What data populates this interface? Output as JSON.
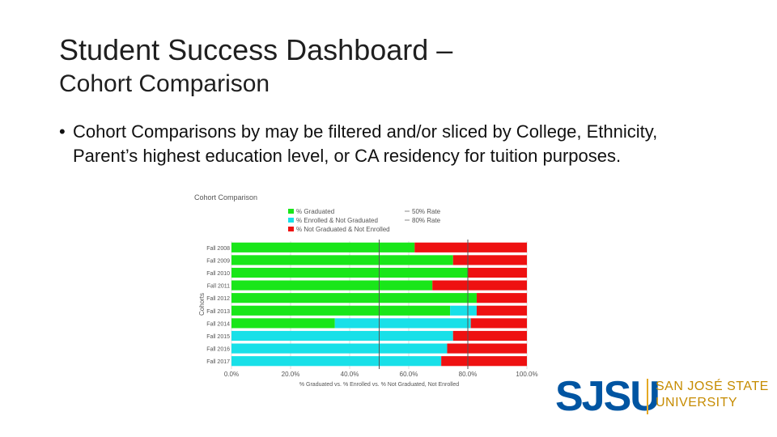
{
  "slide": {
    "title_line1": "Student Success Dashboard –",
    "title_line2": "Cohort Comparison",
    "bullet_marker": "•",
    "bullet_text": "Cohort Comparisons by may be filtered and/or sliced by College, Ethnicity, Parent’s highest education level, or CA residency for tuition purposes."
  },
  "logo": {
    "mark": "SJSU",
    "name_line1": "SAN JOSÉ STATE",
    "name_line2": "UNIVERSITY",
    "colors": {
      "blue": "#0055a2",
      "gold": "#e5a823"
    }
  },
  "chart_data": {
    "type": "bar",
    "orientation": "horizontal",
    "stacked": true,
    "title": "Cohort Comparison",
    "xlabel": "% Graduated vs. % Enrolled vs. % Not Graduated, Not Enrolled",
    "ylabel": "Cohorts",
    "xlim": [
      0,
      100
    ],
    "xticks": [
      "0.0%",
      "20.0%",
      "40.0%",
      "60.0%",
      "80.0%",
      "100.0%"
    ],
    "categories": [
      "Fall 2008",
      "Fall 2009",
      "Fall 2010",
      "Fall 2011",
      "Fall 2012",
      "Fall 2013",
      "Fall 2014",
      "Fall 2015",
      "Fall 2016",
      "Fall 2017"
    ],
    "series": [
      {
        "name": "% Graduated",
        "color": "#19e619",
        "values": [
          62,
          75,
          80,
          68,
          83,
          74,
          35,
          0,
          0,
          0
        ]
      },
      {
        "name": "% Enrolled & Not Graduated",
        "color": "#18e0e8",
        "values": [
          0,
          0,
          0,
          0,
          0,
          9,
          46,
          75,
          73,
          71
        ]
      },
      {
        "name": "% Not Graduated & Not Enrolled",
        "color": "#ee1111",
        "values": [
          38,
          25,
          20,
          32,
          17,
          17,
          19,
          25,
          27,
          29
        ]
      }
    ],
    "reference_lines": [
      {
        "name": "50% Rate",
        "value": 50
      },
      {
        "name": "80% Rate",
        "value": 80
      }
    ],
    "legend_position": "top"
  }
}
